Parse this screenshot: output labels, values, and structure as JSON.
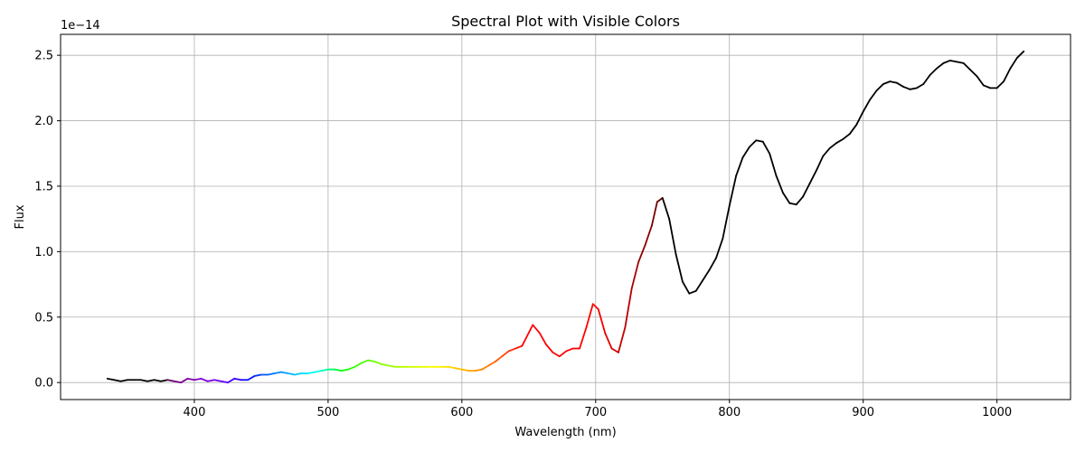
{
  "chart_data": {
    "type": "line",
    "title": "Spectral Plot with Visible Colors",
    "xlabel": "Wavelength (nm)",
    "ylabel": "Flux",
    "offset_label": "1e−14",
    "xlim": [
      300,
      1055
    ],
    "ylim": [
      -0.13,
      2.66
    ],
    "x_ticks": [
      400,
      500,
      600,
      700,
      800,
      900,
      1000
    ],
    "x_tick_labels": [
      "400",
      "500",
      "600",
      "700",
      "800",
      "900",
      "1000"
    ],
    "y_ticks": [
      0.0,
      0.5,
      1.0,
      1.5,
      2.0,
      2.5
    ],
    "y_tick_labels": [
      "0.0",
      "0.5",
      "1.0",
      "1.5",
      "2.0",
      "2.5"
    ],
    "grid": true,
    "legend": "none",
    "colors": {
      "outside_visible": "#000000",
      "visible_spectrum": "wavelength-mapped (violet to red)"
    },
    "series": [
      {
        "x": [
          335,
          340,
          345,
          350,
          355,
          360,
          365,
          370,
          375,
          380,
          385,
          390,
          395,
          400,
          405,
          410,
          415,
          420,
          425,
          430,
          435,
          440,
          445,
          450,
          455,
          460,
          465,
          470,
          475,
          480,
          485,
          490,
          495,
          500,
          505,
          510,
          515,
          520,
          525,
          530,
          535,
          540,
          545,
          550,
          555,
          560,
          565,
          570,
          575,
          580,
          585,
          590,
          595,
          600,
          605,
          610,
          615,
          620,
          625,
          630,
          635,
          640,
          645,
          650,
          653,
          658,
          663,
          668,
          673,
          678,
          683,
          688,
          693,
          698,
          702,
          707,
          712,
          717,
          722,
          727,
          732,
          737,
          742,
          746,
          750,
          755,
          760,
          765,
          770,
          775,
          780,
          785,
          790,
          795,
          800,
          805,
          810,
          815,
          820,
          825,
          830,
          835,
          840,
          845,
          850,
          855,
          860,
          865,
          870,
          875,
          880,
          885,
          890,
          895,
          900,
          905,
          910,
          915,
          920,
          925,
          930,
          935,
          940,
          945,
          950,
          955,
          960,
          965,
          970,
          975,
          980,
          985,
          990,
          995,
          1000,
          1005,
          1010,
          1015,
          1020
        ],
        "y": [
          0.03,
          0.02,
          0.01,
          0.02,
          0.02,
          0.02,
          0.01,
          0.02,
          0.01,
          0.02,
          0.01,
          0.0,
          0.03,
          0.02,
          0.03,
          0.01,
          0.02,
          0.01,
          0.0,
          0.03,
          0.02,
          0.02,
          0.05,
          0.06,
          0.06,
          0.07,
          0.08,
          0.07,
          0.06,
          0.07,
          0.07,
          0.08,
          0.09,
          0.1,
          0.1,
          0.09,
          0.1,
          0.12,
          0.15,
          0.17,
          0.16,
          0.14,
          0.13,
          0.12,
          0.12,
          0.12,
          0.12,
          0.12,
          0.12,
          0.12,
          0.12,
          0.12,
          0.11,
          0.1,
          0.09,
          0.09,
          0.1,
          0.13,
          0.16,
          0.2,
          0.24,
          0.26,
          0.28,
          0.38,
          0.44,
          0.38,
          0.29,
          0.23,
          0.2,
          0.24,
          0.26,
          0.26,
          0.42,
          0.6,
          0.56,
          0.38,
          0.26,
          0.23,
          0.42,
          0.72,
          0.92,
          1.05,
          1.2,
          1.38,
          1.41,
          1.25,
          0.98,
          0.77,
          0.68,
          0.7,
          0.78,
          0.86,
          0.95,
          1.1,
          1.35,
          1.58,
          1.72,
          1.8,
          1.85,
          1.84,
          1.75,
          1.58,
          1.45,
          1.37,
          1.36,
          1.42,
          1.52,
          1.62,
          1.73,
          1.79,
          1.83,
          1.86,
          1.9,
          1.97,
          2.07,
          2.16,
          2.23,
          2.28,
          2.3,
          2.29,
          2.26,
          2.24,
          2.25,
          2.28,
          2.35,
          2.4,
          2.44,
          2.46,
          2.45,
          2.44,
          2.39,
          2.34,
          2.27,
          2.25,
          2.25,
          2.3,
          2.4,
          2.48,
          2.53
        ]
      }
    ]
  }
}
